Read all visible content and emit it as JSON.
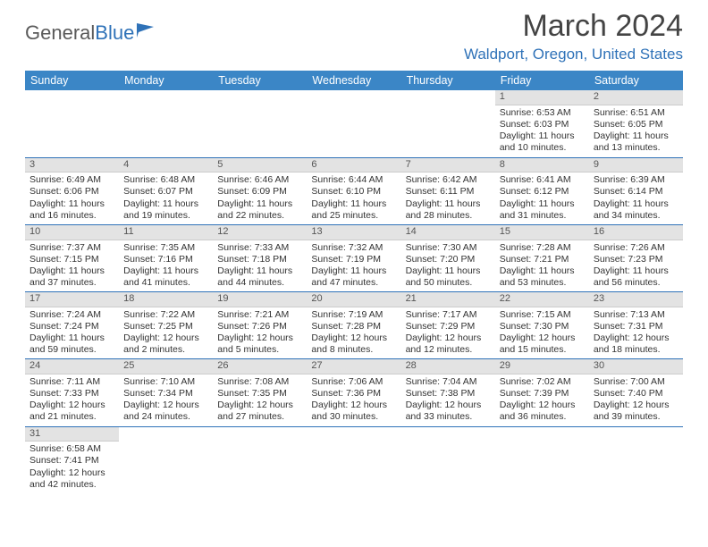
{
  "logo": {
    "text1": "General",
    "text2": "Blue"
  },
  "title": "March 2024",
  "location": "Waldport, Oregon, United States",
  "header_color": "#3b86c6",
  "accent_color": "#2f72b8",
  "daybar_color": "#e3e3e3",
  "weekdays": [
    "Sunday",
    "Monday",
    "Tuesday",
    "Wednesday",
    "Thursday",
    "Friday",
    "Saturday"
  ],
  "weeks": [
    [
      null,
      null,
      null,
      null,
      null,
      {
        "n": "1",
        "sr": "6:53 AM",
        "ss": "6:03 PM",
        "dl": "11 hours and 10 minutes."
      },
      {
        "n": "2",
        "sr": "6:51 AM",
        "ss": "6:05 PM",
        "dl": "11 hours and 13 minutes."
      }
    ],
    [
      {
        "n": "3",
        "sr": "6:49 AM",
        "ss": "6:06 PM",
        "dl": "11 hours and 16 minutes."
      },
      {
        "n": "4",
        "sr": "6:48 AM",
        "ss": "6:07 PM",
        "dl": "11 hours and 19 minutes."
      },
      {
        "n": "5",
        "sr": "6:46 AM",
        "ss": "6:09 PM",
        "dl": "11 hours and 22 minutes."
      },
      {
        "n": "6",
        "sr": "6:44 AM",
        "ss": "6:10 PM",
        "dl": "11 hours and 25 minutes."
      },
      {
        "n": "7",
        "sr": "6:42 AM",
        "ss": "6:11 PM",
        "dl": "11 hours and 28 minutes."
      },
      {
        "n": "8",
        "sr": "6:41 AM",
        "ss": "6:12 PM",
        "dl": "11 hours and 31 minutes."
      },
      {
        "n": "9",
        "sr": "6:39 AM",
        "ss": "6:14 PM",
        "dl": "11 hours and 34 minutes."
      }
    ],
    [
      {
        "n": "10",
        "sr": "7:37 AM",
        "ss": "7:15 PM",
        "dl": "11 hours and 37 minutes."
      },
      {
        "n": "11",
        "sr": "7:35 AM",
        "ss": "7:16 PM",
        "dl": "11 hours and 41 minutes."
      },
      {
        "n": "12",
        "sr": "7:33 AM",
        "ss": "7:18 PM",
        "dl": "11 hours and 44 minutes."
      },
      {
        "n": "13",
        "sr": "7:32 AM",
        "ss": "7:19 PM",
        "dl": "11 hours and 47 minutes."
      },
      {
        "n": "14",
        "sr": "7:30 AM",
        "ss": "7:20 PM",
        "dl": "11 hours and 50 minutes."
      },
      {
        "n": "15",
        "sr": "7:28 AM",
        "ss": "7:21 PM",
        "dl": "11 hours and 53 minutes."
      },
      {
        "n": "16",
        "sr": "7:26 AM",
        "ss": "7:23 PM",
        "dl": "11 hours and 56 minutes."
      }
    ],
    [
      {
        "n": "17",
        "sr": "7:24 AM",
        "ss": "7:24 PM",
        "dl": "11 hours and 59 minutes."
      },
      {
        "n": "18",
        "sr": "7:22 AM",
        "ss": "7:25 PM",
        "dl": "12 hours and 2 minutes."
      },
      {
        "n": "19",
        "sr": "7:21 AM",
        "ss": "7:26 PM",
        "dl": "12 hours and 5 minutes."
      },
      {
        "n": "20",
        "sr": "7:19 AM",
        "ss": "7:28 PM",
        "dl": "12 hours and 8 minutes."
      },
      {
        "n": "21",
        "sr": "7:17 AM",
        "ss": "7:29 PM",
        "dl": "12 hours and 12 minutes."
      },
      {
        "n": "22",
        "sr": "7:15 AM",
        "ss": "7:30 PM",
        "dl": "12 hours and 15 minutes."
      },
      {
        "n": "23",
        "sr": "7:13 AM",
        "ss": "7:31 PM",
        "dl": "12 hours and 18 minutes."
      }
    ],
    [
      {
        "n": "24",
        "sr": "7:11 AM",
        "ss": "7:33 PM",
        "dl": "12 hours and 21 minutes."
      },
      {
        "n": "25",
        "sr": "7:10 AM",
        "ss": "7:34 PM",
        "dl": "12 hours and 24 minutes."
      },
      {
        "n": "26",
        "sr": "7:08 AM",
        "ss": "7:35 PM",
        "dl": "12 hours and 27 minutes."
      },
      {
        "n": "27",
        "sr": "7:06 AM",
        "ss": "7:36 PM",
        "dl": "12 hours and 30 minutes."
      },
      {
        "n": "28",
        "sr": "7:04 AM",
        "ss": "7:38 PM",
        "dl": "12 hours and 33 minutes."
      },
      {
        "n": "29",
        "sr": "7:02 AM",
        "ss": "7:39 PM",
        "dl": "12 hours and 36 minutes."
      },
      {
        "n": "30",
        "sr": "7:00 AM",
        "ss": "7:40 PM",
        "dl": "12 hours and 39 minutes."
      }
    ],
    [
      {
        "n": "31",
        "sr": "6:58 AM",
        "ss": "7:41 PM",
        "dl": "12 hours and 42 minutes."
      },
      null,
      null,
      null,
      null,
      null,
      null
    ]
  ],
  "labels": {
    "sunrise": "Sunrise: ",
    "sunset": "Sunset: ",
    "daylight": "Daylight: "
  }
}
